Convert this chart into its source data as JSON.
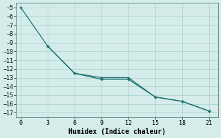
{
  "line1_x": [
    0,
    3,
    6,
    9,
    12,
    15,
    18,
    21
  ],
  "line1_y": [
    -5,
    -9.4,
    -12.5,
    -13.0,
    -13.0,
    -15.2,
    -15.7,
    -16.8
  ],
  "line2_x": [
    3,
    6,
    9,
    12,
    15,
    18,
    21
  ],
  "line2_y": [
    -9.4,
    -12.5,
    -13.2,
    -13.2,
    -15.2,
    -15.7,
    -16.8
  ],
  "line_color": "#1a7070",
  "bg_color": "#d4ecea",
  "grid_color": "#aed4d0",
  "xlabel": "Humidex (Indice chaleur)",
  "xlim": [
    -0.5,
    22
  ],
  "ylim": [
    -17.5,
    -4.5
  ],
  "xticks": [
    0,
    3,
    6,
    9,
    12,
    15,
    18,
    21
  ],
  "yticks": [
    -5,
    -6,
    -7,
    -8,
    -9,
    -10,
    -11,
    -12,
    -13,
    -14,
    -15,
    -16,
    -17
  ],
  "font_family": "monospace",
  "tick_fontsize": 6.0,
  "xlabel_fontsize": 7.0
}
